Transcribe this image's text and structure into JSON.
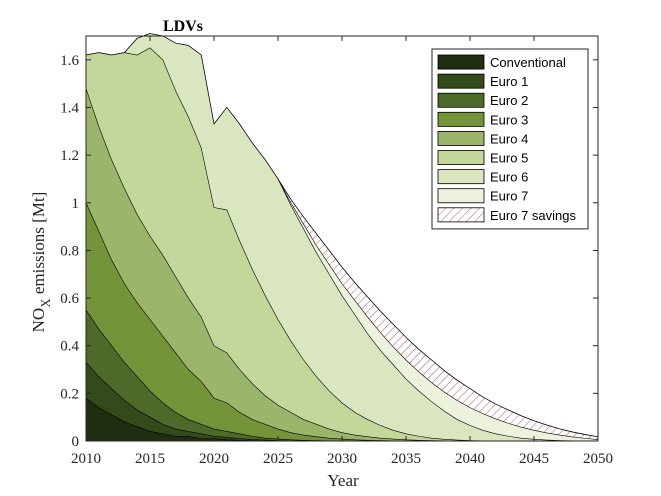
{
  "chart_data": {
    "type": "area",
    "title": "LDVs",
    "xlabel": "Year",
    "ylabel": {
      "main": "NO",
      "sub": "X",
      "rest": " emissions [Mt]"
    },
    "xlim": [
      2010,
      2050
    ],
    "ylim": [
      0,
      1.7
    ],
    "xticks": [
      2010,
      2015,
      2020,
      2025,
      2030,
      2035,
      2040,
      2045,
      2050
    ],
    "yticks": [
      0,
      0.2,
      0.4,
      0.6,
      0.8,
      1,
      1.2,
      1.4,
      1.6
    ],
    "ytick_labels": [
      "0",
      "0.2",
      "0.4",
      "0.6",
      "0.8",
      "1",
      "1.2",
      "1.4",
      "1.6"
    ],
    "legend_position": "top-right",
    "x": [
      2010,
      2011,
      2012,
      2013,
      2014,
      2015,
      2016,
      2017,
      2018,
      2019,
      2020,
      2021,
      2022,
      2023,
      2024,
      2025,
      2026,
      2027,
      2028,
      2029,
      2030,
      2031,
      2032,
      2033,
      2034,
      2035,
      2036,
      2037,
      2038,
      2039,
      2040,
      2041,
      2042,
      2043,
      2044,
      2045,
      2046,
      2047,
      2048,
      2049,
      2050
    ],
    "cumulative": true,
    "series": [
      {
        "name": "Conventional",
        "color": "#1f2d10",
        "values": [
          0.18,
          0.14,
          0.11,
          0.08,
          0.06,
          0.04,
          0.03,
          0.02,
          0.02,
          0.01,
          0.01,
          0.005,
          0.003,
          0.002,
          0.001,
          0,
          0,
          0,
          0,
          0,
          0,
          0,
          0,
          0,
          0,
          0,
          0,
          0,
          0,
          0,
          0,
          0,
          0,
          0,
          0,
          0,
          0,
          0,
          0,
          0,
          0
        ]
      },
      {
        "name": "Euro 1",
        "color": "#344a1a",
        "values": [
          0.33,
          0.27,
          0.22,
          0.17,
          0.13,
          0.1,
          0.07,
          0.05,
          0.04,
          0.03,
          0.02,
          0.015,
          0.01,
          0.006,
          0.004,
          0.002,
          0.001,
          0,
          0,
          0,
          0,
          0,
          0,
          0,
          0,
          0,
          0,
          0,
          0,
          0,
          0,
          0,
          0,
          0,
          0,
          0,
          0,
          0,
          0,
          0,
          0
        ]
      },
      {
        "name": "Euro 2",
        "color": "#4d6a29",
        "values": [
          0.55,
          0.47,
          0.4,
          0.33,
          0.27,
          0.21,
          0.16,
          0.12,
          0.09,
          0.07,
          0.05,
          0.04,
          0.03,
          0.02,
          0.012,
          0.008,
          0.005,
          0.003,
          0.002,
          0.001,
          0,
          0,
          0,
          0,
          0,
          0,
          0,
          0,
          0,
          0,
          0,
          0,
          0,
          0,
          0,
          0,
          0,
          0,
          0,
          0,
          0
        ]
      },
      {
        "name": "Euro 3",
        "color": "#739438",
        "values": [
          1.0,
          0.88,
          0.76,
          0.66,
          0.58,
          0.51,
          0.44,
          0.37,
          0.3,
          0.25,
          0.18,
          0.16,
          0.12,
          0.09,
          0.07,
          0.05,
          0.035,
          0.025,
          0.018,
          0.012,
          0.008,
          0.005,
          0.003,
          0.002,
          0.001,
          0,
          0,
          0,
          0,
          0,
          0,
          0,
          0,
          0,
          0,
          0,
          0,
          0,
          0,
          0,
          0
        ]
      },
      {
        "name": "Euro 4",
        "color": "#9bb56a",
        "values": [
          1.48,
          1.32,
          1.18,
          1.06,
          0.95,
          0.86,
          0.78,
          0.69,
          0.6,
          0.52,
          0.4,
          0.37,
          0.3,
          0.24,
          0.19,
          0.15,
          0.12,
          0.09,
          0.07,
          0.05,
          0.035,
          0.025,
          0.018,
          0.012,
          0.008,
          0.005,
          0.003,
          0.002,
          0.001,
          0,
          0,
          0,
          0,
          0,
          0,
          0,
          0,
          0,
          0,
          0,
          0
        ]
      },
      {
        "name": "Euro 5",
        "color": "#c3d79b",
        "values": [
          1.62,
          1.63,
          1.62,
          1.63,
          1.62,
          1.65,
          1.6,
          1.47,
          1.36,
          1.23,
          0.98,
          0.97,
          0.84,
          0.72,
          0.61,
          0.51,
          0.42,
          0.34,
          0.27,
          0.21,
          0.16,
          0.12,
          0.09,
          0.065,
          0.045,
          0.03,
          0.02,
          0.012,
          0.007,
          0.004,
          0.002,
          0.001,
          0,
          0,
          0,
          0,
          0,
          0,
          0,
          0,
          0
        ]
      },
      {
        "name": "Euro 6",
        "color": "#d9e6bf",
        "values": [
          1.62,
          1.63,
          1.62,
          1.63,
          1.69,
          1.71,
          1.7,
          1.67,
          1.66,
          1.62,
          1.33,
          1.4,
          1.33,
          1.25,
          1.18,
          1.1,
          0.99,
          0.89,
          0.79,
          0.7,
          0.61,
          0.53,
          0.45,
          0.38,
          0.32,
          0.26,
          0.21,
          0.165,
          0.125,
          0.09,
          0.065,
          0.045,
          0.03,
          0.02,
          0.012,
          0.007,
          0.004,
          0.002,
          0.001,
          0,
          0
        ]
      },
      {
        "name": "Euro 7",
        "color": "#ecf2dc",
        "values": [
          1.62,
          1.63,
          1.62,
          1.63,
          1.69,
          1.71,
          1.7,
          1.67,
          1.66,
          1.62,
          1.33,
          1.4,
          1.33,
          1.25,
          1.18,
          1.1,
          1.0,
          0.91,
          0.82,
          0.74,
          0.66,
          0.59,
          0.52,
          0.455,
          0.395,
          0.34,
          0.29,
          0.245,
          0.205,
          0.17,
          0.14,
          0.115,
          0.093,
          0.074,
          0.058,
          0.045,
          0.034,
          0.025,
          0.017,
          0.011,
          0.006
        ]
      }
    ],
    "savings": {
      "name": "Euro 7 savings",
      "color": "#c0505a",
      "upper": [
        1.62,
        1.63,
        1.62,
        1.63,
        1.69,
        1.71,
        1.7,
        1.67,
        1.66,
        1.62,
        1.33,
        1.4,
        1.33,
        1.25,
        1.18,
        1.1,
        1.015,
        0.94,
        0.87,
        0.8,
        0.73,
        0.665,
        0.605,
        0.545,
        0.49,
        0.435,
        0.385,
        0.34,
        0.295,
        0.255,
        0.22,
        0.185,
        0.155,
        0.13,
        0.106,
        0.085,
        0.067,
        0.051,
        0.038,
        0.027,
        0.018
      ]
    }
  }
}
